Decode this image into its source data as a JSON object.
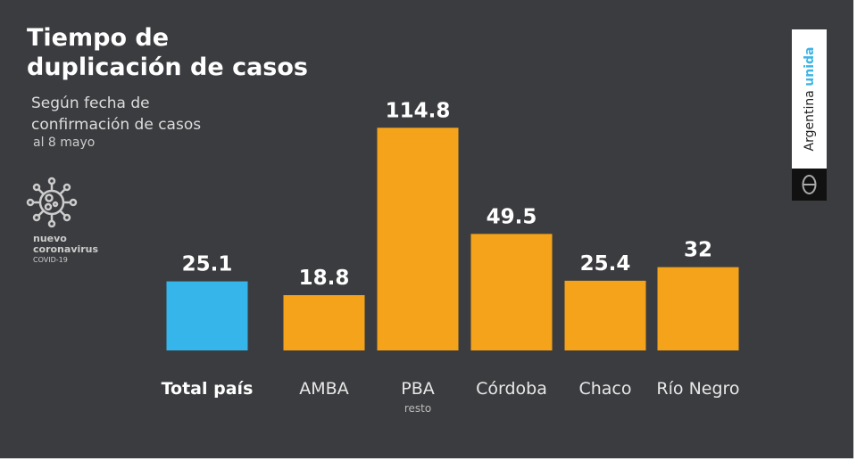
{
  "chart_data": {
    "type": "bar",
    "title": "Tiempo de duplicación de casos",
    "subtitle": "Según fecha de confirmación de casos",
    "date": "al 8 mayo",
    "categories": [
      "Total país",
      "AMBA",
      "PBA",
      "Córdoba",
      "Chaco",
      "Río Negro"
    ],
    "category_notes": [
      "",
      "",
      "resto",
      "",
      "",
      ""
    ],
    "values": [
      25.1,
      18.8,
      114.8,
      49.5,
      25.4,
      32
    ],
    "value_labels": [
      "25.1",
      "18.8",
      "114.8",
      "49.5",
      "25.4",
      "32"
    ],
    "colors": [
      "#35b5e9",
      "#f5a31a",
      "#f5a31a",
      "#f5a31a",
      "#f5a31a",
      "#f5a31a"
    ],
    "xlabel": "",
    "ylabel": ""
  },
  "title_lines": [
    "Tiempo de",
    "duplicación de casos"
  ],
  "subtitle_lines": [
    "Según fecha de",
    "confirmación de casos"
  ],
  "badge": {
    "line1": "nuevo",
    "line2": "coronavirus",
    "line3": "COVID-19"
  },
  "logo": {
    "word1": "Argentina",
    "word2": "unida"
  }
}
